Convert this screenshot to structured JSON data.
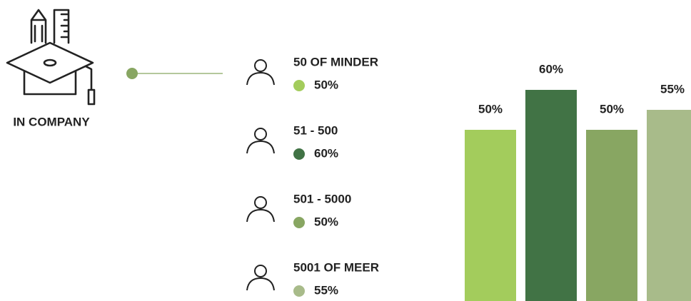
{
  "label": "IN COMPANY",
  "chart_data": {
    "type": "bar",
    "categories": [
      "50 OF MINDER",
      "51 - 500",
      "501 - 5000",
      "5001 OF MEER"
    ],
    "values": [
      50,
      60,
      50,
      55
    ],
    "value_labels": [
      "50%",
      "60%",
      "50%",
      "55%"
    ],
    "colors": [
      "#a3cc5c",
      "#417345",
      "#88a662",
      "#a8bb8a"
    ]
  }
}
